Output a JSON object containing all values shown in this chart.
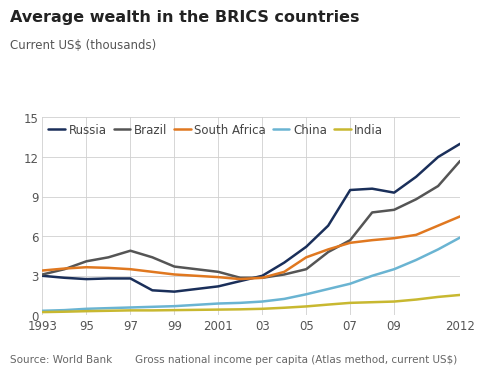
{
  "title": "Average wealth in the BRICS countries",
  "subtitle": "Current US$ (thousands)",
  "footnote_left": "Source: World Bank",
  "footnote_right": "Gross national income per capita (Atlas method, current US$)",
  "years": [
    1993,
    1994,
    1995,
    1996,
    1997,
    1998,
    1999,
    2000,
    2001,
    2002,
    2003,
    2004,
    2005,
    2006,
    2007,
    2008,
    2009,
    2010,
    2011,
    2012
  ],
  "xtick_labels": [
    "1993",
    "95",
    "97",
    "99",
    "2001",
    "03",
    "05",
    "07",
    "09",
    "2012"
  ],
  "xtick_positions": [
    1993,
    1995,
    1997,
    1999,
    2001,
    2003,
    2005,
    2007,
    2009,
    2012
  ],
  "ylim": [
    0,
    15
  ],
  "yticks": [
    0,
    3,
    6,
    9,
    12,
    15
  ],
  "series": {
    "Russia": {
      "color": "#1a2f5a",
      "linewidth": 1.8,
      "values": [
        3.0,
        2.85,
        2.75,
        2.8,
        2.8,
        1.9,
        1.8,
        2.0,
        2.2,
        2.6,
        3.0,
        4.0,
        5.2,
        6.8,
        9.5,
        9.6,
        9.3,
        10.5,
        12.0,
        13.0
      ]
    },
    "Brazil": {
      "color": "#555555",
      "linewidth": 1.8,
      "values": [
        3.1,
        3.5,
        4.1,
        4.4,
        4.9,
        4.4,
        3.7,
        3.5,
        3.3,
        2.85,
        2.85,
        3.1,
        3.5,
        4.8,
        5.7,
        7.8,
        8.0,
        8.8,
        9.8,
        11.7
      ]
    },
    "South Africa": {
      "color": "#e07820",
      "linewidth": 1.8,
      "values": [
        3.4,
        3.55,
        3.65,
        3.6,
        3.5,
        3.3,
        3.1,
        3.0,
        2.9,
        2.75,
        2.85,
        3.3,
        4.4,
        5.0,
        5.5,
        5.7,
        5.85,
        6.1,
        6.8,
        7.5
      ]
    },
    "China": {
      "color": "#6ab4d2",
      "linewidth": 1.8,
      "values": [
        0.35,
        0.4,
        0.5,
        0.55,
        0.6,
        0.65,
        0.7,
        0.8,
        0.9,
        0.95,
        1.05,
        1.25,
        1.6,
        2.0,
        2.4,
        3.0,
        3.5,
        4.2,
        5.0,
        5.9
      ]
    },
    "India": {
      "color": "#c8b830",
      "linewidth": 1.8,
      "values": [
        0.25,
        0.28,
        0.32,
        0.35,
        0.38,
        0.38,
        0.4,
        0.42,
        0.44,
        0.46,
        0.5,
        0.58,
        0.68,
        0.82,
        0.95,
        1.0,
        1.05,
        1.2,
        1.4,
        1.55
      ]
    }
  },
  "legend_order": [
    "Russia",
    "Brazil",
    "South Africa",
    "China",
    "India"
  ],
  "background_color": "#ffffff",
  "grid_color": "#d0d0d0",
  "title_fontsize": 11.5,
  "subtitle_fontsize": 8.5,
  "footnote_fontsize": 7.5,
  "tick_fontsize": 8.5,
  "legend_fontsize": 8.5
}
